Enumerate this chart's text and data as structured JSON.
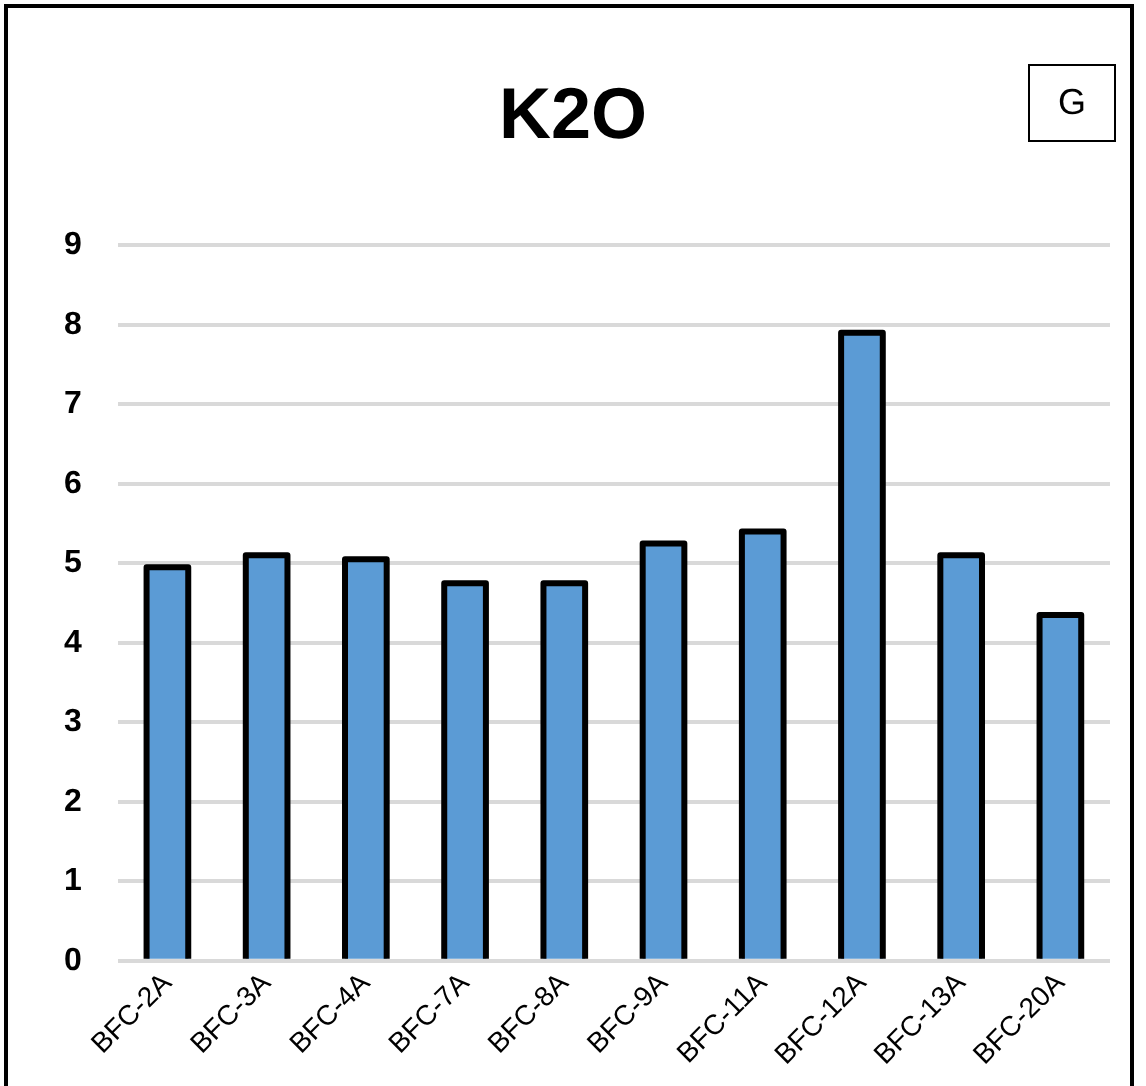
{
  "chart_data": {
    "type": "bar",
    "title": "K2O",
    "categories": [
      "BFC-2A",
      "BFC-3A",
      "BFC-4A",
      "BFC-7A",
      "BFC-8A",
      "BFC-9A",
      "BFC-11A",
      "BFC-12A",
      "BFC-13A",
      "BFC-20A"
    ],
    "values": [
      4.95,
      5.1,
      5.05,
      4.75,
      4.75,
      5.25,
      5.4,
      7.9,
      5.1,
      4.35
    ],
    "color": "#5b9bd5",
    "ylim": [
      0,
      9
    ],
    "yticks": [
      0,
      1,
      2,
      3,
      4,
      5,
      6,
      7,
      8,
      9
    ],
    "grid": "y",
    "annotations": [
      "G"
    ]
  }
}
